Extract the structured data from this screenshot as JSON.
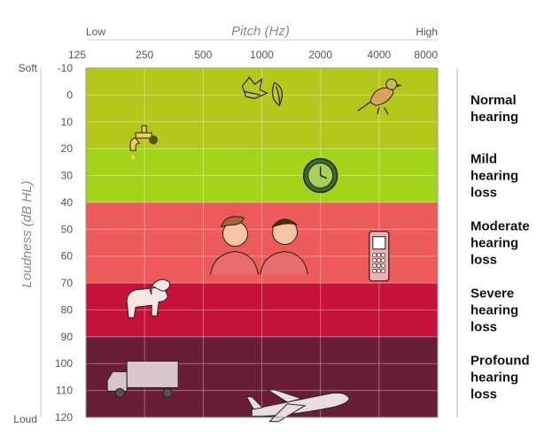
{
  "chart_data": {
    "type": "heatmap",
    "title": "",
    "xlabel": "Pitch (Hz)",
    "ylabel": "Loudness (dB HL)",
    "x_scale": "log",
    "x_ticks": [
      "125",
      "250",
      "500",
      "1000",
      "2000",
      "4000",
      "8000"
    ],
    "x_values": [
      125,
      250,
      500,
      1000,
      2000,
      4000,
      8000
    ],
    "x_end_labels": {
      "low": "Low",
      "high": "High"
    },
    "y_ticks": [
      -10,
      0,
      10,
      20,
      30,
      40,
      50,
      60,
      70,
      80,
      90,
      100,
      110,
      120
    ],
    "y_end_labels": {
      "top": "Soft",
      "bottom": "Loud"
    },
    "ylim": [
      -10,
      120
    ],
    "grid": true,
    "bands": [
      {
        "label_lines": [
          "Normal",
          "hearing"
        ],
        "from_db": -10,
        "to_db": 20,
        "color": "#b5c71a"
      },
      {
        "label_lines": [
          "Mild",
          "hearing",
          "loss"
        ],
        "from_db": 20,
        "to_db": 40,
        "color": "#a4d31c"
      },
      {
        "label_lines": [
          "Moderate",
          "hearing",
          "loss"
        ],
        "from_db": 40,
        "to_db": 70,
        "color": "#ed5a5a"
      },
      {
        "label_lines": [
          "Severe",
          "hearing",
          "loss"
        ],
        "from_db": 70,
        "to_db": 90,
        "color": "#c4123a"
      },
      {
        "label_lines": [
          "Profound",
          "hearing",
          "loss"
        ],
        "from_db": 90,
        "to_db": 120,
        "color": "#6a1e36"
      }
    ],
    "sound_icons": [
      {
        "name": "dripping-faucet-icon",
        "hz": 250,
        "db": 20
      },
      {
        "name": "rustling-leaves-icon",
        "hz": 1000,
        "db": 0
      },
      {
        "name": "bird-icon",
        "hz": 4000,
        "db": 0
      },
      {
        "name": "clock-icon",
        "hz": 2000,
        "db": 30
      },
      {
        "name": "conversation-icon",
        "hz": 1000,
        "db": 55
      },
      {
        "name": "cell-phone-icon",
        "hz": 4000,
        "db": 60
      },
      {
        "name": "barking-dog-icon",
        "hz": 250,
        "db": 75
      },
      {
        "name": "truck-icon",
        "hz": 250,
        "db": 105
      },
      {
        "name": "airplane-icon",
        "hz": 1500,
        "db": 115
      }
    ]
  }
}
